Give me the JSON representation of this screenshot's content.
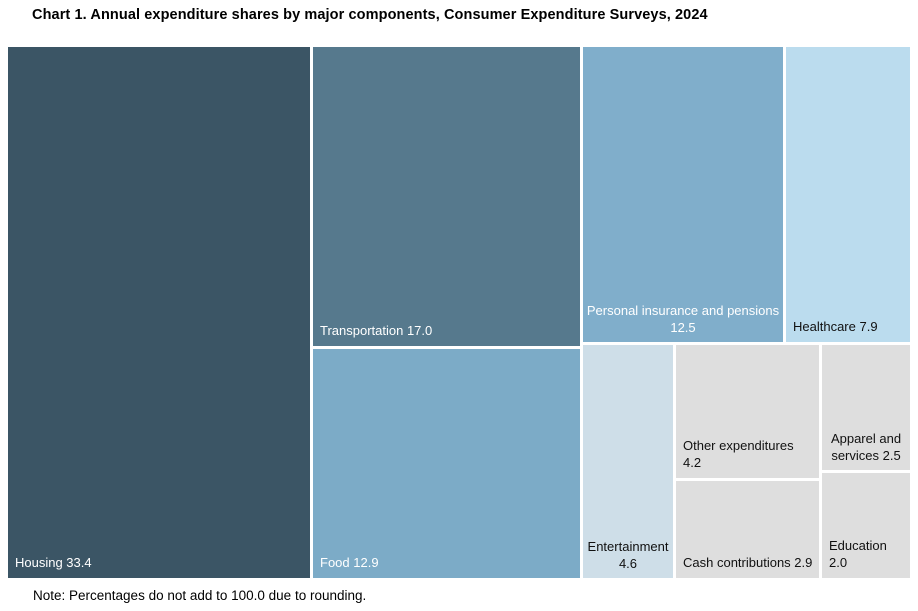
{
  "chart_data": {
    "type": "treemap",
    "title": "Chart 1. Annual expenditure shares by major components, Consumer Expenditure Surveys, 2024",
    "note": "Note: Percentages do not add to 100.0 due to rounding.",
    "legend_position": "none",
    "items": [
      {
        "category": "Housing",
        "value": 33.4,
        "label": "Housing 33.4",
        "color": "#3B5565",
        "text_color": "#FFFFFF"
      },
      {
        "category": "Transportation",
        "value": 17.0,
        "label": "Transportation 17.0",
        "color": "#56798D",
        "text_color": "#FFFFFF"
      },
      {
        "category": "Food",
        "value": 12.9,
        "label": "Food 12.9",
        "color": "#7CABC7",
        "text_color": "#FFFFFF"
      },
      {
        "category": "Personal insurance and pensions",
        "value": 12.5,
        "label": "Personal insurance and pensions\n12.5",
        "color": "#80AECB",
        "text_color": "#FFFFFF"
      },
      {
        "category": "Healthcare",
        "value": 7.9,
        "label": "Healthcare 7.9",
        "color": "#BBDCEE",
        "text_color": "#111111"
      },
      {
        "category": "Entertainment",
        "value": 4.6,
        "label": "Entertainment\n4.6",
        "color": "#CEDEE8",
        "text_color": "#111111"
      },
      {
        "category": "Other expenditures",
        "value": 4.2,
        "label": "Other expenditures 4.2",
        "color": "#DEDEDE",
        "text_color": "#111111"
      },
      {
        "category": "Cash contributions",
        "value": 2.9,
        "label": "Cash contributions 2.9",
        "color": "#DEDEDE",
        "text_color": "#111111"
      },
      {
        "category": "Apparel and services",
        "value": 2.5,
        "label": "Apparel and\nservices 2.5",
        "color": "#DEDEDE",
        "text_color": "#111111"
      },
      {
        "category": "Education",
        "value": 2.0,
        "label": "Education 2.0",
        "color": "#DEDEDE",
        "text_color": "#111111"
      }
    ]
  }
}
